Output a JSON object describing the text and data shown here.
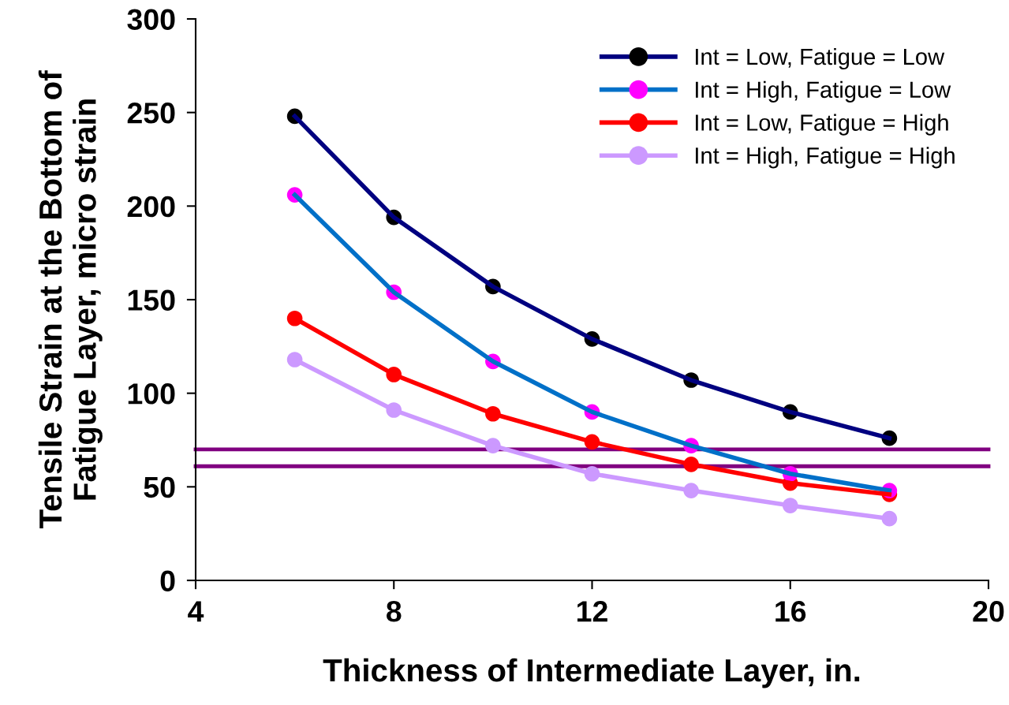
{
  "chart_data": {
    "type": "line",
    "xlabel": "Thickness of Intermediate Layer, in.",
    "ylabel": "Tensile Strain at the Bottom of\nFatigue Layer, micro strain",
    "x": [
      6,
      8,
      10,
      12,
      14,
      16,
      18
    ],
    "series": [
      {
        "name": "Int = Low, Fatigue = Low",
        "color": "#000080",
        "colors": [
          "#000000",
          "#000000",
          "#000000",
          "#000000",
          "#000000",
          "#000000",
          "#000000"
        ],
        "values": [
          248,
          194,
          157,
          129,
          107,
          90,
          76
        ]
      },
      {
        "name": "Int = High, Fatigue = Low",
        "color": "#0070c8",
        "colors": [
          "#ff00ff",
          "#ff00ff",
          "#ff00ff",
          "#ff00ff",
          "#ff00ff",
          "#ff00ff",
          "#ff00ff"
        ],
        "values": [
          206,
          154,
          117,
          90,
          72,
          57,
          48
        ]
      },
      {
        "name": "Int = Low, Fatigue = High",
        "color": "#ff0000",
        "colors": [
          "#ff0000",
          "#ff0000",
          "#ff0000",
          "#ff0000",
          "#ff0000",
          "#ff0000",
          "#ff0000"
        ],
        "values": [
          140,
          110,
          89,
          74,
          62,
          52,
          46
        ]
      },
      {
        "name": "Int = High, Fatigue = High",
        "color": "#cc99ff",
        "colors": [
          "#cc99ff",
          "#cc99ff",
          "#cc99ff",
          "#cc99ff",
          "#cc99ff",
          "#cc99ff",
          "#cc99ff"
        ],
        "values": [
          118,
          91,
          72,
          57,
          48,
          40,
          33
        ]
      }
    ],
    "xlim": [
      4,
      20
    ],
    "xticks": [
      4,
      8,
      12,
      16,
      20
    ],
    "ylim": [
      0,
      300
    ],
    "yticks": [
      0,
      50,
      100,
      150,
      200,
      250,
      300
    ],
    "ref_lines": [
      {
        "axis": "y",
        "value": 70,
        "color": "#800080"
      },
      {
        "axis": "y",
        "value": 61,
        "color": "#800080"
      }
    ],
    "grid": false,
    "legend": "top right",
    "marker": "circle",
    "line_style": "solid"
  }
}
